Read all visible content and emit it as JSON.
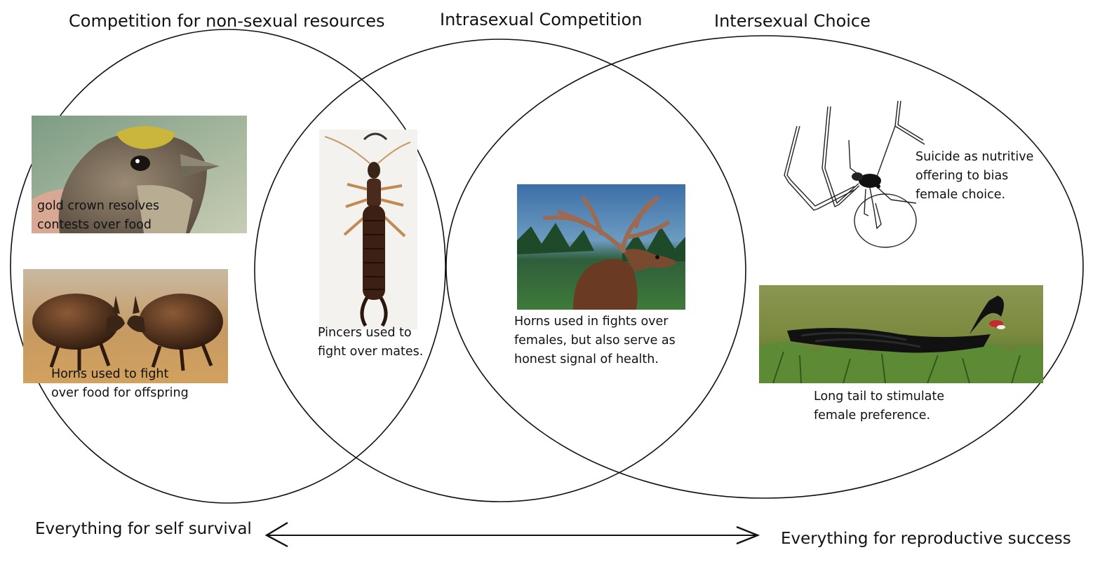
{
  "headings": {
    "left": "Competition for non-sexual resources",
    "middle": "Intrasexual Competition",
    "right": "Intersexual Choice"
  },
  "captions": {
    "bird": [
      "gold crown resolves",
      "contests over food"
    ],
    "beetles": [
      "Horns used to fight",
      "over food for offspring"
    ],
    "earwig": [
      "Pincers used to",
      "fight over mates."
    ],
    "elk": [
      "Horns used in fights over",
      "females, but also serve as",
      "honest signal of health."
    ],
    "spider": [
      "Suicide as nutritive",
      "offering to bias",
      "female choice."
    ],
    "widowbird": [
      "Long tail to stimulate",
      "female preference."
    ]
  },
  "axis": {
    "left_label": "Everything for self survival",
    "right_label": "Everything for reproductive success"
  },
  "images": {
    "bird": "bird-photo",
    "beetles": "beetles-photo",
    "earwig": "earwig-photo",
    "elk": "elk-photo",
    "spider": "spider-drawing",
    "widowbird": "widowbird-photo"
  }
}
